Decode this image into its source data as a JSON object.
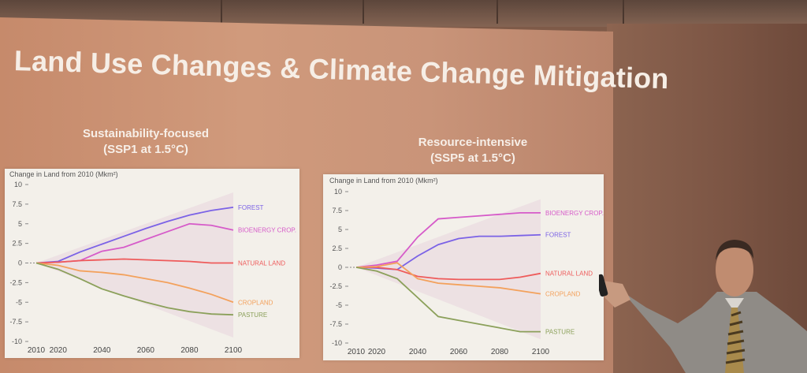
{
  "slide": {
    "title": "Land Use Changes & Climate Change Mitigation"
  },
  "colors": {
    "forest": "#7b62e6",
    "bioenergy": "#d65bc9",
    "natural_land": "#ee5b5b",
    "cropland": "#f3a15c",
    "pasture": "#8ba05a"
  },
  "panels": [
    {
      "subtitle_line1": "Sustainability-focused",
      "subtitle_line2": "(SSP1 at 1.5°C)",
      "ylabel": "Change in Land from 2010 (Mkm²)"
    },
    {
      "subtitle_line1": "Resource-intensive",
      "subtitle_line2": "(SSP5 at 1.5°C)",
      "ylabel": "Change in Land from 2010 (Mkm²)"
    }
  ],
  "chart_data": [
    {
      "type": "line",
      "title": "",
      "xlabel": "",
      "ylabel": "Change in Land from 2010 (Mkm²)",
      "x": [
        2010,
        2020,
        2030,
        2040,
        2050,
        2060,
        2070,
        2080,
        2090,
        2100
      ],
      "xticks": [
        "2010",
        "2020",
        "2040",
        "2060",
        "2080",
        "2100"
      ],
      "yticks": [
        "10",
        "7.5",
        "5",
        "2.5",
        "0",
        "-2.5",
        "-5",
        "-7.5",
        "-10"
      ],
      "ylim": [
        -10,
        10
      ],
      "series": [
        {
          "name": "FOREST",
          "color": "#7b62e6",
          "values": [
            0,
            0.2,
            1.4,
            2.4,
            3.4,
            4.4,
            5.3,
            6.1,
            6.7,
            7.1
          ]
        },
        {
          "name": "BIOENERGY CROP.",
          "color": "#d65bc9",
          "values": [
            0,
            0.1,
            0.3,
            1.5,
            2.0,
            3.0,
            4.0,
            5.0,
            4.8,
            4.2
          ]
        },
        {
          "name": "NATURAL LAND",
          "color": "#ee5b5b",
          "values": [
            0,
            0.1,
            0.3,
            0.4,
            0.5,
            0.4,
            0.3,
            0.2,
            0,
            0
          ]
        },
        {
          "name": "CROPLAND",
          "color": "#f3a15c",
          "values": [
            0,
            -0.3,
            -1.0,
            -1.2,
            -1.5,
            -2.0,
            -2.5,
            -3.2,
            -4.0,
            -5.0
          ]
        },
        {
          "name": "PASTURE",
          "color": "#8ba05a",
          "values": [
            0,
            -0.8,
            -2.0,
            -3.3,
            -4.2,
            -5.0,
            -5.7,
            -6.2,
            -6.5,
            -6.6
          ]
        }
      ]
    },
    {
      "type": "line",
      "title": "",
      "xlabel": "",
      "ylabel": "Change in Land from 2010 (Mkm²)",
      "x": [
        2010,
        2020,
        2030,
        2040,
        2050,
        2060,
        2070,
        2080,
        2090,
        2100
      ],
      "xticks": [
        "2010",
        "2020",
        "2040",
        "2060",
        "2080",
        "2100"
      ],
      "yticks": [
        "10",
        "7.5",
        "5",
        "2.5",
        "0",
        "-2.5",
        "-5",
        "-7.5",
        "-10"
      ],
      "ylim": [
        -10,
        10
      ],
      "series": [
        {
          "name": "BIOENERGY CROP.",
          "color": "#d65bc9",
          "values": [
            0,
            0.3,
            0.8,
            4.0,
            6.4,
            6.6,
            6.8,
            7.0,
            7.2,
            7.2
          ]
        },
        {
          "name": "FOREST",
          "color": "#7b62e6",
          "values": [
            0,
            -0.1,
            -0.3,
            1.5,
            3.0,
            3.8,
            4.1,
            4.1,
            4.2,
            4.3
          ]
        },
        {
          "name": "NATURAL LAND",
          "color": "#ee5b5b",
          "values": [
            0,
            0,
            -0.3,
            -1.2,
            -1.5,
            -1.6,
            -1.6,
            -1.6,
            -1.3,
            -0.8
          ]
        },
        {
          "name": "CROPLAND",
          "color": "#f3a15c",
          "values": [
            0,
            0.1,
            0.6,
            -1.5,
            -2.1,
            -2.3,
            -2.5,
            -2.7,
            -3.1,
            -3.5
          ]
        },
        {
          "name": "PASTURE",
          "color": "#8ba05a",
          "values": [
            0,
            -0.5,
            -1.5,
            -4.0,
            -6.5,
            -7.0,
            -7.5,
            -8.0,
            -8.5,
            -8.5
          ]
        }
      ]
    }
  ]
}
